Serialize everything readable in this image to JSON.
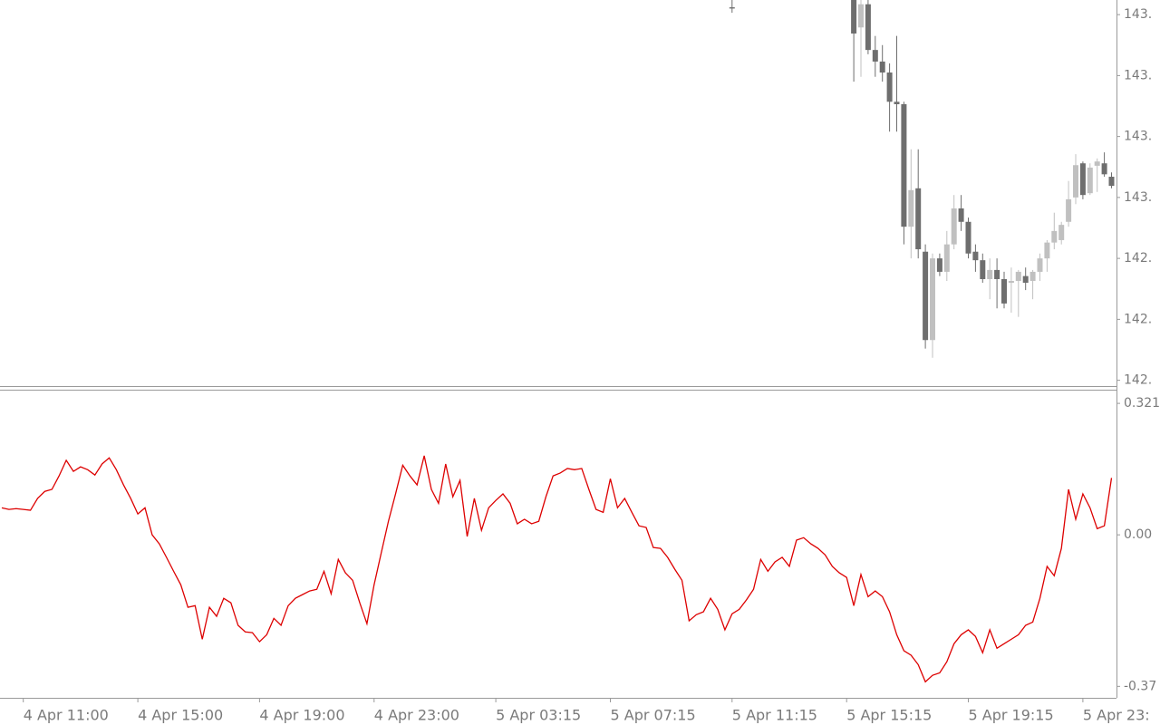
{
  "chart_data": [
    {
      "type": "candlestick",
      "up_color": "#c0c0c0",
      "down_color": "#6e6e6e",
      "ylim": [
        142.692,
        143.324
      ],
      "yticks": [
        {
          "value": 143.3,
          "label": "143."
        },
        {
          "value": 143.2,
          "label": "143."
        },
        {
          "value": 143.1,
          "label": "143."
        },
        {
          "value": 143.0,
          "label": "143."
        },
        {
          "value": 142.9,
          "label": "142."
        },
        {
          "value": 142.8,
          "label": "142."
        },
        {
          "value": 142.7,
          "label": "142."
        }
      ],
      "open": [
        null,
        null,
        null,
        null,
        null,
        null,
        null,
        null,
        null,
        null,
        null,
        null,
        null,
        null,
        null,
        null,
        null,
        null,
        null,
        null,
        null,
        null,
        null,
        null,
        null,
        null,
        null,
        null,
        null,
        null,
        null,
        null,
        null,
        null,
        null,
        null,
        null,
        null,
        null,
        null,
        null,
        null,
        null,
        null,
        null,
        null,
        null,
        null,
        null,
        null,
        null,
        null,
        null,
        null,
        null,
        null,
        null,
        null,
        null,
        null,
        null,
        null,
        null,
        null,
        null,
        null,
        null,
        null,
        null,
        null,
        null,
        null,
        null,
        null,
        null,
        null,
        null,
        null,
        null,
        null,
        null,
        null,
        null,
        null,
        null,
        null,
        null,
        null,
        null,
        null,
        null,
        null,
        null,
        null,
        null,
        null,
        null,
        null,
        null,
        null,
        null,
        null,
        143.312,
        null,
        null,
        null,
        null,
        null,
        null,
        null,
        null,
        null,
        null,
        null,
        null,
        null,
        null,
        null,
        null,
        143.324,
        143.279,
        143.317,
        143.242,
        143.223,
        143.205,
        143.157,
        143.153,
        142.952,
        143.015,
        142.911,
        142.766,
        142.9,
        142.878,
        142.923,
        142.982,
        142.96,
        142.911,
        142.897,
        142.866,
        142.881,
        142.866,
        142.86,
        142.863,
        142.871,
        142.863,
        142.878,
        142.9,
        142.926,
        142.93,
        142.96,
        143.0,
        143.056,
        143.007,
        143.052,
        143.056,
        143.034
      ],
      "high": [
        null,
        null,
        null,
        null,
        null,
        null,
        null,
        null,
        null,
        null,
        null,
        null,
        null,
        null,
        null,
        null,
        null,
        null,
        null,
        null,
        null,
        null,
        null,
        null,
        null,
        null,
        null,
        null,
        null,
        null,
        null,
        null,
        null,
        null,
        null,
        null,
        null,
        null,
        null,
        null,
        null,
        null,
        null,
        null,
        null,
        null,
        null,
        null,
        null,
        null,
        null,
        null,
        null,
        null,
        null,
        null,
        null,
        null,
        null,
        null,
        null,
        null,
        null,
        null,
        null,
        null,
        null,
        null,
        null,
        null,
        null,
        null,
        null,
        null,
        null,
        null,
        null,
        null,
        null,
        null,
        null,
        null,
        null,
        null,
        null,
        null,
        null,
        null,
        null,
        null,
        null,
        null,
        null,
        null,
        null,
        null,
        null,
        null,
        null,
        null,
        null,
        null,
        143.324,
        null,
        null,
        null,
        null,
        null,
        null,
        null,
        null,
        null,
        null,
        null,
        null,
        null,
        null,
        null,
        null,
        143.324,
        143.324,
        143.324,
        143.265,
        143.25,
        143.22,
        143.265,
        143.157,
        143.079,
        143.079,
        142.923,
        142.908,
        142.908,
        142.945,
        143.004,
        143.004,
        142.967,
        142.923,
        142.908,
        142.9,
        142.9,
        142.878,
        142.885,
        142.881,
        142.885,
        142.881,
        142.908,
        142.93,
        142.975,
        142.96,
        143.027,
        143.071,
        143.059,
        143.056,
        143.064,
        143.074,
        143.041
      ],
      "low": [
        null,
        null,
        null,
        null,
        null,
        null,
        null,
        null,
        null,
        null,
        null,
        null,
        null,
        null,
        null,
        null,
        null,
        null,
        null,
        null,
        null,
        null,
        null,
        null,
        null,
        null,
        null,
        null,
        null,
        null,
        null,
        null,
        null,
        null,
        null,
        null,
        null,
        null,
        null,
        null,
        null,
        null,
        null,
        null,
        null,
        null,
        null,
        null,
        null,
        null,
        null,
        null,
        null,
        null,
        null,
        null,
        null,
        null,
        null,
        null,
        null,
        null,
        null,
        null,
        null,
        null,
        null,
        null,
        null,
        null,
        null,
        null,
        null,
        null,
        null,
        null,
        null,
        null,
        null,
        null,
        null,
        null,
        null,
        null,
        null,
        null,
        null,
        null,
        null,
        null,
        null,
        null,
        null,
        null,
        null,
        null,
        null,
        null,
        null,
        null,
        null,
        null,
        143.303,
        null,
        null,
        null,
        null,
        null,
        null,
        null,
        null,
        null,
        null,
        null,
        null,
        null,
        null,
        null,
        null,
        143.19,
        143.198,
        143.235,
        143.198,
        143.19,
        143.108,
        143.108,
        142.923,
        142.9,
        142.9,
        142.752,
        142.737,
        142.871,
        142.863,
        142.915,
        142.945,
        142.9,
        142.878,
        142.86,
        142.833,
        142.818,
        142.818,
        142.811,
        142.804,
        142.848,
        142.833,
        142.863,
        142.878,
        142.915,
        142.923,
        142.952,
        142.989,
        142.997,
        143.004,
        143.009,
        143.034,
        143.015
      ],
      "close": [
        null,
        null,
        null,
        null,
        null,
        null,
        null,
        null,
        null,
        null,
        null,
        null,
        null,
        null,
        null,
        null,
        null,
        null,
        null,
        null,
        null,
        null,
        null,
        null,
        null,
        null,
        null,
        null,
        null,
        null,
        null,
        null,
        null,
        null,
        null,
        null,
        null,
        null,
        null,
        null,
        null,
        null,
        null,
        null,
        null,
        null,
        null,
        null,
        null,
        null,
        null,
        null,
        null,
        null,
        null,
        null,
        null,
        null,
        null,
        null,
        null,
        null,
        null,
        null,
        null,
        null,
        null,
        null,
        null,
        null,
        null,
        null,
        null,
        null,
        null,
        null,
        null,
        null,
        null,
        null,
        null,
        null,
        null,
        null,
        null,
        null,
        null,
        null,
        null,
        null,
        null,
        null,
        null,
        null,
        null,
        null,
        null,
        null,
        null,
        null,
        null,
        null,
        143.31,
        null,
        null,
        null,
        null,
        null,
        null,
        null,
        null,
        null,
        null,
        null,
        null,
        null,
        null,
        null,
        null,
        143.269,
        143.317,
        143.242,
        143.223,
        143.205,
        143.157,
        143.153,
        142.952,
        143.012,
        142.915,
        142.766,
        142.9,
        142.878,
        142.923,
        142.982,
        142.96,
        142.908,
        142.897,
        142.866,
        142.881,
        142.866,
        142.826,
        142.863,
        142.878,
        142.86,
        142.878,
        142.9,
        142.926,
        142.945,
        142.955,
        142.997,
        143.053,
        143.004,
        143.049,
        143.059,
        143.038,
        143.019
      ]
    },
    {
      "type": "line",
      "categories": [
        null,
        null,
        null,
        "4 Apr 11:00",
        null,
        null,
        null,
        null,
        null,
        null,
        null,
        null,
        null,
        null,
        null,
        null,
        null,
        null,
        null,
        "4 Apr 15:00",
        null,
        null,
        null,
        null,
        null,
        null,
        null,
        null,
        null,
        null,
        null,
        null,
        null,
        null,
        null,
        null,
        "4 Apr 19:00",
        null,
        null,
        null,
        null,
        null,
        null,
        null,
        null,
        null,
        null,
        null,
        null,
        null,
        null,
        null,
        "4 Apr 23:00",
        null,
        null,
        null,
        null,
        null,
        null,
        null,
        null,
        null,
        null,
        null,
        null,
        null,
        null,
        null,
        null,
        "5 Apr 03:15",
        null,
        null,
        null,
        null,
        null,
        null,
        null,
        null,
        null,
        null,
        null,
        null,
        null,
        null,
        null,
        "5 Apr 07:15",
        null,
        null,
        null,
        null,
        null,
        null,
        null,
        null,
        null,
        null,
        null,
        null,
        null,
        null,
        null,
        null,
        "5 Apr 11:15",
        null,
        null,
        null,
        null,
        null,
        null,
        null,
        null,
        null,
        null,
        null,
        null,
        null,
        null,
        null,
        "5 Apr 15:15",
        null,
        null,
        null,
        null,
        null,
        null,
        null,
        null,
        null,
        null,
        null,
        null,
        null,
        null,
        null,
        null,
        "5 Apr 19:15",
        null,
        null,
        null,
        null,
        null,
        null,
        null,
        null,
        null,
        null,
        null,
        null,
        null,
        null,
        null,
        "5 Apr 23:",
        null,
        null,
        null,
        null
      ],
      "series": [
        {
          "color": "#dd0000",
          "values": [
            0.066,
            0.062,
            0.064,
            0.062,
            0.06,
            0.089,
            0.106,
            0.111,
            0.144,
            0.182,
            0.155,
            0.166,
            0.159,
            0.146,
            0.173,
            0.188,
            0.159,
            0.122,
            0.089,
            0.051,
            0.066,
            0,
            -0.022,
            -0.055,
            -0.089,
            -0.122,
            -0.177,
            -0.173,
            -0.255,
            -0.177,
            -0.199,
            -0.155,
            -0.166,
            -0.221,
            -0.237,
            -0.239,
            -0.261,
            -0.244,
            -0.204,
            -0.221,
            -0.173,
            -0.155,
            -0.146,
            -0.137,
            -0.133,
            -0.089,
            -0.144,
            -0.06,
            -0.093,
            -0.111,
            -0.166,
            -0.217,
            -0.122,
            -0.044,
            0.033,
            0.1,
            0.17,
            0.144,
            0.122,
            0.193,
            0.111,
            0.077,
            0.173,
            0.093,
            0.133,
            -0.004,
            0.089,
            0.011,
            0.066,
            0.084,
            0.1,
            0.077,
            0.027,
            0.038,
            0.027,
            0.033,
            0.093,
            0.144,
            0.151,
            0.162,
            0.159,
            0.162,
            0.111,
            0.062,
            0.055,
            0.137,
            0.066,
            0.089,
            0.055,
            0.022,
            0.018,
            -0.031,
            -0.033,
            -0.055,
            -0.084,
            -0.111,
            -0.21,
            -0.195,
            -0.188,
            -0.155,
            -0.182,
            -0.232,
            -0.193,
            -0.182,
            -0.159,
            -0.133,
            -0.06,
            -0.089,
            -0.066,
            -0.055,
            -0.077,
            -0.013,
            -0.007,
            -0.022,
            -0.033,
            -0.049,
            -0.077,
            -0.093,
            -0.104,
            -0.173,
            -0.097,
            -0.151,
            -0.137,
            -0.151,
            -0.188,
            -0.244,
            -0.283,
            -0.294,
            -0.317,
            -0.359,
            -0.343,
            -0.337,
            -0.31,
            -0.266,
            -0.244,
            -0.232,
            -0.248,
            -0.288,
            -0.232,
            -0.277,
            -0.266,
            -0.255,
            -0.244,
            -0.221,
            -0.213,
            -0.155,
            -0.077,
            -0.1,
            -0.033,
            0.111,
            0.038,
            0.1,
            0.066,
            0.015,
            0.022,
            0.139
          ]
        }
      ],
      "ylim": [
        -0.398,
        0.35
      ],
      "yticks": [
        0.321,
        {
          "value": 0,
          "label": "0.00"
        },
        -0.37
      ]
    }
  ]
}
